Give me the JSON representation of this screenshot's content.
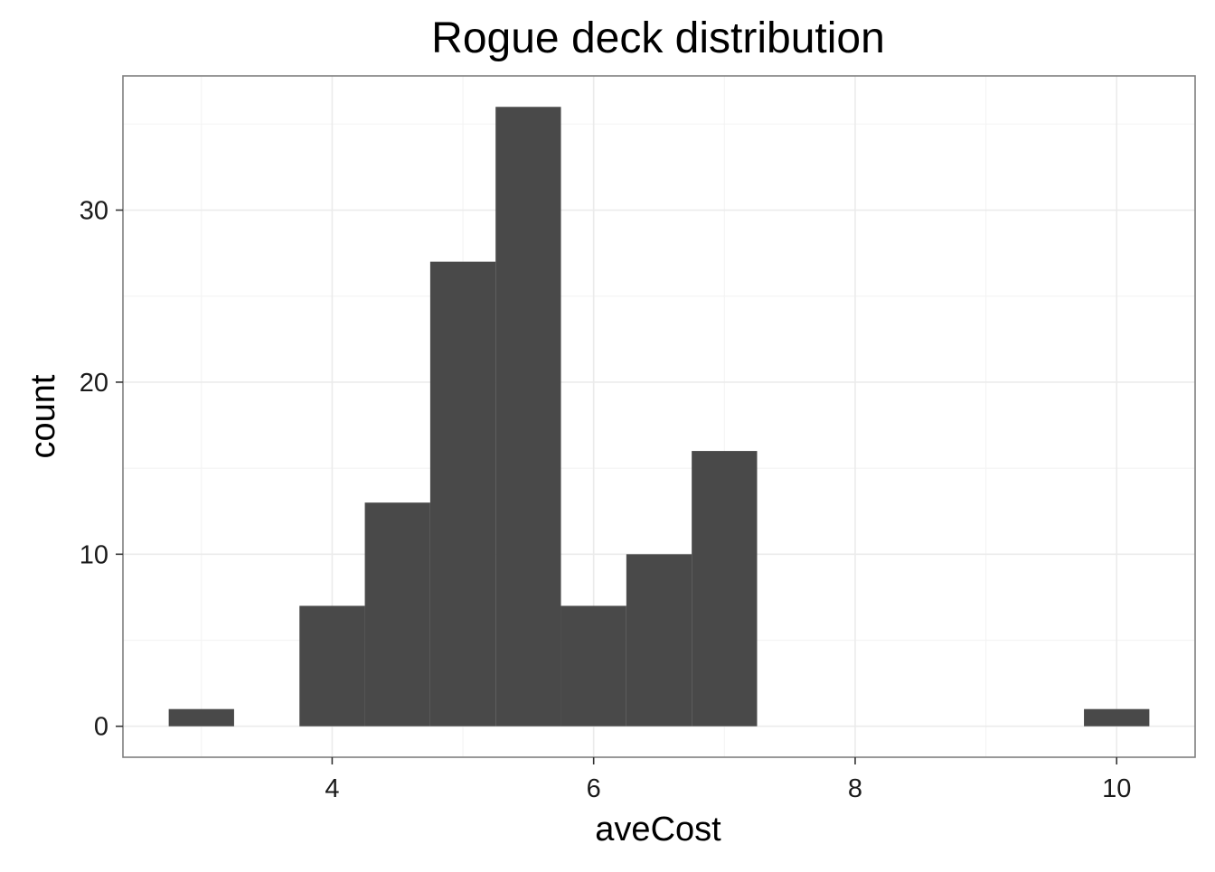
{
  "chart_data": {
    "type": "bar",
    "title": "Rogue deck distribution",
    "xlabel": "aveCost",
    "ylabel": "count",
    "bins": [
      {
        "x0": 2.75,
        "x1": 3.25,
        "count": 1
      },
      {
        "x0": 3.25,
        "x1": 3.75,
        "count": 0
      },
      {
        "x0": 3.75,
        "x1": 4.25,
        "count": 7
      },
      {
        "x0": 4.25,
        "x1": 4.75,
        "count": 13
      },
      {
        "x0": 4.75,
        "x1": 5.25,
        "count": 27
      },
      {
        "x0": 5.25,
        "x1": 5.75,
        "count": 36
      },
      {
        "x0": 5.75,
        "x1": 6.25,
        "count": 7
      },
      {
        "x0": 6.25,
        "x1": 6.75,
        "count": 10
      },
      {
        "x0": 6.75,
        "x1": 7.25,
        "count": 16
      },
      {
        "x0": 7.25,
        "x1": 7.75,
        "count": 0
      },
      {
        "x0": 7.75,
        "x1": 8.25,
        "count": 0
      },
      {
        "x0": 8.25,
        "x1": 8.75,
        "count": 0
      },
      {
        "x0": 8.75,
        "x1": 9.25,
        "count": 0
      },
      {
        "x0": 9.25,
        "x1": 9.75,
        "count": 0
      },
      {
        "x0": 9.75,
        "x1": 10.25,
        "count": 1
      }
    ],
    "xlim": [
      2.4,
      10.6
    ],
    "ylim": [
      -1.8,
      37.8
    ],
    "x_ticks": [
      "4",
      "6",
      "8",
      "10"
    ],
    "y_ticks": [
      "0",
      "10",
      "20",
      "30"
    ],
    "grid": true,
    "colors": {
      "bar": "#494949",
      "panel_border": "#7f7f7f",
      "grid": "#ebebeb"
    }
  }
}
